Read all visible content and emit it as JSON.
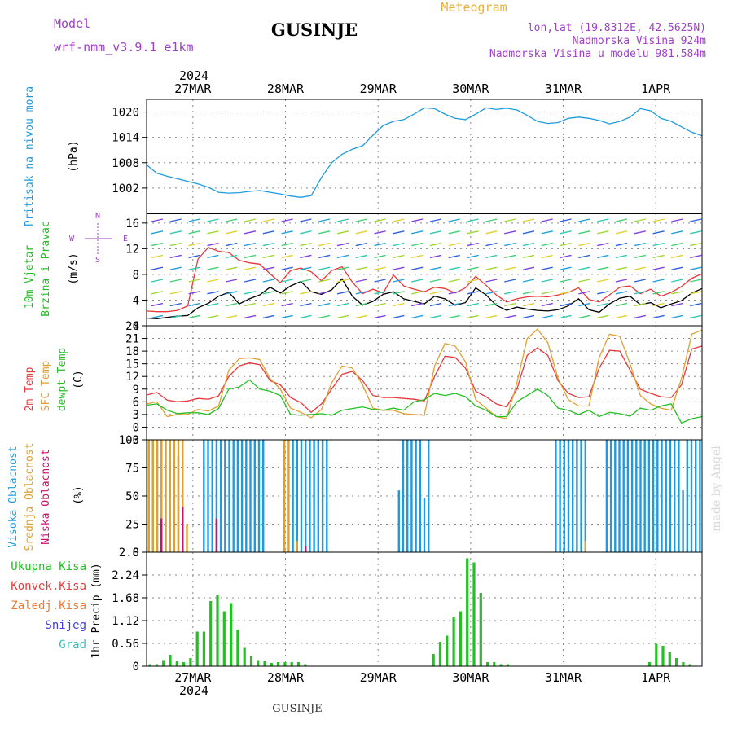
{
  "header": {
    "title": "GUSINJE",
    "meteogram": "Meteogram",
    "model_label": "Model",
    "model_name": "wrf-nmm_v3.9.1 e1km",
    "lonlat": "lon,lat (19.8312E, 42.5625N)",
    "elevation": "Nadmorska Visina 924m",
    "model_elevation": "Nadmorska Visina u modelu 981.584m",
    "watermark": "made by Angel",
    "footer": "GUSINJE",
    "year": "2024"
  },
  "colors": {
    "pressure": "#1e9be0",
    "t2m": "#e8383c",
    "sfc": "#e0a030",
    "dewpt": "#22c022",
    "high_cloud": "#1e9be0",
    "mid_cloud": "#e0a030",
    "low_cloud": "#c8106e",
    "total_precip": "#22c022",
    "conv_precip": "#e8383c",
    "frz_precip": "#f07830",
    "snow": "#4040e0",
    "graupel": "#30c0c0",
    "wind_speed": "#000000",
    "gust": "#e8383c"
  },
  "chart_data": {
    "type": "meteogram",
    "x_ticks": [
      "27MAR",
      "28MAR",
      "29MAR",
      "30MAR",
      "31MAR",
      "1APR"
    ],
    "x_tick_hours": [
      12,
      36,
      60,
      84,
      108,
      132
    ],
    "x_range_hours": [
      0,
      144
    ],
    "hour_step": 3,
    "panels": [
      {
        "id": "pressure",
        "type": "line",
        "ylabel": [
          "Pritisak na nivou mora",
          "(hPa)"
        ],
        "ylim": [
          996,
          1023
        ],
        "yticks": [
          1002,
          1008,
          1014,
          1020
        ],
        "series": [
          {
            "key": "pressure",
            "values": [
              1007.5,
              1005.5,
              1004.8,
              1004.2,
              1003.6,
              1003.0,
              1002.2,
              1001.0,
              1000.8,
              1000.9,
              1001.2,
              1001.4,
              1001.0,
              1000.6,
              1000.1,
              999.8,
              1000.2,
              1004.5,
              1008.0,
              1010.0,
              1011.2,
              1012.0,
              1014.5,
              1016.8,
              1017.8,
              1018.2,
              1019.5,
              1021.0,
              1020.8,
              1019.5,
              1018.5,
              1018.2,
              1019.5,
              1021.0,
              1020.6,
              1020.9,
              1020.5,
              1019.2,
              1017.8,
              1017.3,
              1017.5,
              1018.5,
              1018.8,
              1018.5,
              1018.0,
              1017.2,
              1017.8,
              1018.8,
              1020.8,
              1020.3,
              1018.5,
              1017.8,
              1016.5,
              1015.2,
              1014.4
            ]
          }
        ]
      },
      {
        "id": "wind",
        "type": "line",
        "ylabel": [
          "10m Vjetar",
          "Brzina i Pravac",
          "(m/s)"
        ],
        "ylim": [
          0,
          17.5
        ],
        "yticks": [
          0,
          4,
          8,
          12,
          16
        ],
        "compass": [
          "N",
          "W",
          "E",
          "S"
        ],
        "series": [
          {
            "key": "wind_speed",
            "values": [
              1.2,
              1.1,
              1.3,
              1.5,
              1.6,
              2.8,
              3.5,
              4.6,
              5.2,
              3.4,
              4.2,
              4.8,
              6.0,
              5.1,
              6.2,
              6.9,
              5.3,
              4.9,
              5.6,
              7.3,
              4.6,
              3.2,
              3.8,
              4.9,
              5.3,
              4.2,
              3.8,
              3.4,
              4.6,
              4.2,
              3.2,
              3.6,
              5.9,
              4.8,
              3.2,
              2.4,
              2.9,
              2.6,
              2.4,
              2.3,
              2.5,
              3.1,
              4.2,
              2.5,
              2.1,
              3.4,
              4.3,
              4.6,
              3.3,
              3.6,
              2.8,
              3.4,
              3.9,
              5.1,
              5.8
            ]
          },
          {
            "key": "gust",
            "values": [
              2.3,
              2.2,
              2.2,
              2.4,
              3.1,
              10.4,
              12.2,
              11.6,
              11.4,
              10.2,
              9.8,
              9.6,
              8.1,
              6.7,
              8.6,
              9.0,
              8.4,
              7.0,
              8.6,
              9.2,
              6.8,
              5.0,
              5.7,
              5.1,
              7.9,
              6.2,
              5.7,
              5.3,
              6.0,
              5.8,
              5.1,
              5.9,
              7.7,
              6.3,
              4.8,
              3.7,
              4.2,
              4.5,
              4.6,
              4.5,
              4.8,
              5.2,
              5.9,
              4.1,
              3.7,
              4.8,
              6.0,
              6.2,
              5.0,
              5.7,
              4.6,
              5.2,
              6.1,
              7.4,
              8.1
            ]
          }
        ]
      },
      {
        "id": "temp",
        "type": "line",
        "ylabel": [
          "2m Temp",
          "SFC Temp",
          "dewpt Temp",
          "(C)"
        ],
        "ylim": [
          -3,
          24
        ],
        "yticks": [
          -3,
          0,
          3,
          6,
          9,
          12,
          15,
          18,
          21,
          24
        ],
        "series": [
          {
            "key": "t2m",
            "values": [
              7.6,
              8.2,
              6.4,
              6.0,
              6.2,
              6.8,
              6.6,
              7.4,
              12.0,
              14.5,
              15.2,
              14.8,
              11.0,
              10.0,
              7.0,
              5.8,
              3.5,
              5.5,
              9.0,
              12.5,
              13.2,
              11.0,
              7.5,
              7.0,
              7.0,
              6.8,
              6.6,
              6.2,
              12.0,
              16.8,
              16.5,
              14.0,
              8.5,
              7.2,
              5.5,
              4.8,
              9.0,
              17.0,
              18.8,
              17.0,
              11.0,
              8.0,
              7.0,
              7.2,
              14.0,
              18.2,
              18.0,
              13.5,
              9.0,
              8.0,
              7.2,
              7.0,
              10.0,
              18.5,
              19.2
            ]
          },
          {
            "key": "sfc",
            "values": [
              5.5,
              6.0,
              2.5,
              3.0,
              3.0,
              4.2,
              3.8,
              5.0,
              13.5,
              16.2,
              16.4,
              16.0,
              11.5,
              9.0,
              4.5,
              3.5,
              2.2,
              4.2,
              10.5,
              14.5,
              14.0,
              10.0,
              4.5,
              4.0,
              4.0,
              3.2,
              3.0,
              2.8,
              14.5,
              19.8,
              19.2,
              15.5,
              6.5,
              4.5,
              2.5,
              2.0,
              10.5,
              21.0,
              23.2,
              20.0,
              11.5,
              6.5,
              5.0,
              5.0,
              16.5,
              22.0,
              21.5,
              15.0,
              7.5,
              5.5,
              4.5,
              4.0,
              11.5,
              22.0,
              23.0
            ]
          },
          {
            "key": "dewpt",
            "values": [
              5.2,
              5.5,
              4.0,
              3.2,
              3.4,
              3.4,
              3.0,
              4.4,
              9.0,
              9.5,
              11.2,
              9.0,
              8.5,
              7.5,
              3.0,
              2.8,
              3.0,
              3.2,
              2.8,
              4.0,
              4.4,
              4.8,
              4.2,
              4.0,
              4.5,
              4.0,
              6.0,
              6.5,
              8.0,
              7.5,
              8.0,
              7.2,
              5.0,
              4.0,
              2.5,
              2.5,
              6.0,
              7.5,
              9.0,
              7.5,
              4.5,
              4.0,
              3.0,
              4.0,
              2.5,
              3.5,
              3.2,
              2.6,
              4.5,
              4.0,
              5.0,
              5.5,
              1.0,
              2.0,
              2.5
            ]
          }
        ]
      },
      {
        "id": "cloud",
        "type": "bar",
        "ylabel": [
          "Visoka Oblacnost",
          "Srednja Oblacnost",
          "Niska Oblacnost",
          "(%)"
        ],
        "ylim": [
          0,
          100
        ],
        "yticks": [
          0,
          25,
          50,
          75,
          100
        ],
        "series": [
          {
            "key": "high_cloud",
            "values": [
              100,
              100,
              100,
              100,
              100,
              100,
              100,
              85,
              100,
              0,
              0,
              0,
              0,
              100,
              100,
              100,
              100,
              100,
              100,
              100,
              100,
              100,
              100,
              100,
              100,
              100,
              100,
              100,
              0,
              0,
              0,
              0,
              0,
              0,
              100,
              100,
              100,
              100,
              100,
              100,
              100,
              100,
              100,
              0,
              0,
              0,
              0,
              0,
              0,
              0,
              0,
              0,
              0,
              0,
              0,
              0,
              0,
              0,
              0,
              55,
              100,
              100,
              100,
              100,
              100,
              48,
              100,
              0,
              0,
              0,
              0,
              0,
              0,
              0,
              0,
              0,
              0,
              0,
              0,
              0,
              0,
              0,
              0,
              0,
              0,
              0,
              0,
              0,
              0,
              0,
              0,
              0,
              0,
              0,
              0,
              0,
              100,
              100,
              100,
              100,
              100,
              100,
              100,
              100,
              0,
              0,
              0,
              0,
              100,
              100,
              100,
              100,
              100,
              100,
              100,
              100,
              100,
              100,
              100,
              100,
              100,
              100,
              100,
              100,
              100,
              100,
              55,
              100,
              100,
              100,
              100
            ]
          },
          {
            "key": "mid_cloud",
            "values": [
              100,
              100,
              100,
              100,
              100,
              100,
              100,
              100,
              100,
              25,
              0,
              0,
              0,
              0,
              0,
              0,
              0,
              0,
              0,
              0,
              0,
              0,
              0,
              0,
              0,
              0,
              0,
              0,
              0,
              0,
              0,
              0,
              100,
              100,
              0,
              10,
              0,
              0,
              0,
              0,
              0,
              0,
              0,
              0,
              0,
              0,
              0,
              0,
              0,
              0,
              0,
              0,
              0,
              0,
              0,
              0,
              0,
              0,
              0,
              0,
              0,
              0,
              0,
              0,
              0,
              0,
              0,
              0,
              0,
              0,
              0,
              0,
              0,
              0,
              0,
              0,
              0,
              0,
              0,
              0,
              0,
              0,
              0,
              0,
              0,
              0,
              0,
              0,
              0,
              0,
              0,
              0,
              0,
              0,
              0,
              0,
              0,
              0,
              0,
              0,
              0,
              0,
              0,
              10,
              0,
              0,
              0,
              0,
              0,
              0,
              0,
              0,
              0,
              0,
              0,
              0,
              0,
              0,
              0,
              0,
              0,
              0,
              0,
              0,
              0,
              0,
              0,
              0,
              0,
              0,
              0
            ]
          },
          {
            "key": "low_cloud",
            "values": [
              0,
              0,
              0,
              30,
              0,
              0,
              0,
              0,
              40,
              0,
              0,
              0,
              0,
              0,
              0,
              0,
              30,
              0,
              0,
              0,
              0,
              0,
              0,
              0,
              0,
              0,
              0,
              0,
              0,
              0,
              0,
              0,
              0,
              0,
              0,
              0,
              0,
              5,
              0,
              0,
              0,
              0,
              0,
              0,
              0,
              0,
              0,
              0,
              0,
              0,
              0,
              0,
              0,
              0,
              0,
              0,
              0,
              0,
              0,
              0,
              0,
              0,
              0,
              0,
              0,
              0,
              0,
              0,
              0,
              0,
              0,
              0,
              0,
              0,
              0,
              0,
              0,
              0,
              0,
              0,
              0,
              0,
              0,
              0,
              0,
              0,
              0,
              0,
              0,
              0,
              0,
              0,
              0,
              0,
              0,
              0,
              0,
              0,
              0,
              0,
              0,
              0,
              0,
              0,
              0,
              0,
              0,
              0,
              0,
              0,
              0,
              0,
              0,
              0,
              0,
              0,
              0,
              0,
              0,
              0,
              0,
              0,
              0,
              0,
              0,
              0,
              0,
              0,
              0,
              0,
              0
            ]
          }
        ]
      },
      {
        "id": "precip",
        "type": "bar",
        "ylabel": [
          "1hr Precip (mm)"
        ],
        "legend": [
          "Ukupna Kisa",
          "Konvek.Kisa",
          "Zaledj.Kisa",
          "Snijeg",
          "Grad"
        ],
        "ylim": [
          0,
          2.8
        ],
        "yticks": [
          0,
          0.56,
          1.12,
          1.68,
          2.24,
          2.8
        ],
        "series": [
          {
            "key": "total_precip",
            "values": [
              0.05,
              0.05,
              0.15,
              0.28,
              0.12,
              0.1,
              0.2,
              0.85,
              0.85,
              1.6,
              1.75,
              1.35,
              1.55,
              0.9,
              0.45,
              0.25,
              0.15,
              0.12,
              0.08,
              0.1,
              0.1,
              0.1,
              0.1,
              0.05,
              0,
              0,
              0,
              0,
              0,
              0,
              0,
              0,
              0,
              0,
              0,
              0,
              0,
              0,
              0,
              0,
              0,
              0,
              0.3,
              0.6,
              0.75,
              1.2,
              1.35,
              2.65,
              2.55,
              1.8,
              0.1,
              0.1,
              0.05,
              0.05,
              0,
              0,
              0,
              0,
              0,
              0,
              0,
              0,
              0,
              0,
              0,
              0,
              0,
              0,
              0,
              0,
              0,
              0,
              0,
              0,
              0.1,
              0.55,
              0.5,
              0.35,
              0.2,
              0.1,
              0.05,
              0,
              0
            ]
          }
        ]
      }
    ]
  }
}
